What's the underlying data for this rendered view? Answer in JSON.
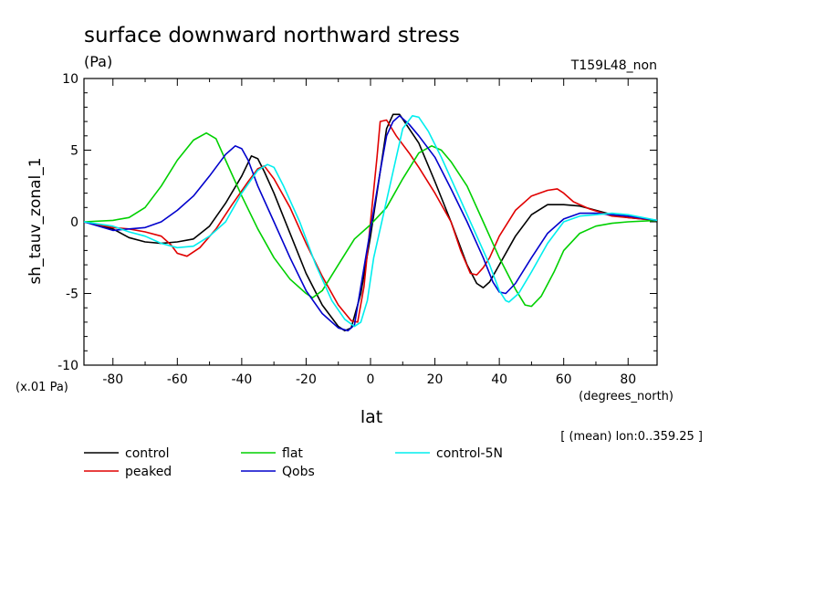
{
  "chart_data": {
    "type": "line",
    "title": "surface downward northward stress",
    "units_label": "(Pa)",
    "run_label": "T159L48_non",
    "ylabel": "sh_tauv_zonal_1",
    "scale_label": "(x.01 Pa)",
    "xlabel": "lat",
    "x_units_label": "(degrees_north)",
    "subset_note": "[ (mean) lon:0..359.25 ]",
    "xlim": [
      -89,
      89
    ],
    "ylim": [
      -10,
      10
    ],
    "x_ticks": [
      "-80",
      "-60",
      "-40",
      "-20",
      "0",
      "20",
      "40",
      "60",
      "80"
    ],
    "y_ticks": [
      "10",
      "5",
      "0",
      "-5",
      "-10"
    ],
    "legend_position": "bottom",
    "series": [
      {
        "name": "control",
        "color": "#000000",
        "points": [
          [
            -89,
            0
          ],
          [
            -80,
            -0.5
          ],
          [
            -75,
            -1.1
          ],
          [
            -70,
            -1.4
          ],
          [
            -65,
            -1.5
          ],
          [
            -60,
            -1.4
          ],
          [
            -55,
            -1.2
          ],
          [
            -50,
            -0.3
          ],
          [
            -45,
            1.3
          ],
          [
            -40,
            3.2
          ],
          [
            -37,
            4.6
          ],
          [
            -35,
            4.4
          ],
          [
            -33,
            3.5
          ],
          [
            -30,
            2.0
          ],
          [
            -25,
            -0.8
          ],
          [
            -20,
            -3.6
          ],
          [
            -15,
            -5.8
          ],
          [
            -10,
            -7.3
          ],
          [
            -8,
            -7.6
          ],
          [
            -6,
            -7.4
          ],
          [
            -3,
            -5.0
          ],
          [
            0,
            -1.0
          ],
          [
            3,
            3.5
          ],
          [
            5,
            6.5
          ],
          [
            7,
            7.5
          ],
          [
            9,
            7.5
          ],
          [
            12,
            6.5
          ],
          [
            15,
            5.5
          ],
          [
            20,
            2.8
          ],
          [
            25,
            0
          ],
          [
            30,
            -3
          ],
          [
            33,
            -4.3
          ],
          [
            35,
            -4.6
          ],
          [
            37,
            -4.2
          ],
          [
            40,
            -3
          ],
          [
            45,
            -1
          ],
          [
            50,
            0.5
          ],
          [
            55,
            1.2
          ],
          [
            60,
            1.2
          ],
          [
            65,
            1.1
          ],
          [
            70,
            0.8
          ],
          [
            75,
            0.5
          ],
          [
            80,
            0.3
          ],
          [
            89,
            0.1
          ]
        ]
      },
      {
        "name": "peaked",
        "color": "#e00000",
        "points": [
          [
            -89,
            0
          ],
          [
            -80,
            -0.4
          ],
          [
            -75,
            -0.5
          ],
          [
            -70,
            -0.7
          ],
          [
            -65,
            -1.0
          ],
          [
            -62,
            -1.6
          ],
          [
            -60,
            -2.2
          ],
          [
            -57,
            -2.4
          ],
          [
            -53,
            -1.8
          ],
          [
            -48,
            -0.5
          ],
          [
            -43,
            1.2
          ],
          [
            -38,
            2.8
          ],
          [
            -35,
            3.7
          ],
          [
            -33,
            3.9
          ],
          [
            -30,
            3.0
          ],
          [
            -25,
            1.0
          ],
          [
            -20,
            -1.5
          ],
          [
            -15,
            -3.8
          ],
          [
            -10,
            -5.8
          ],
          [
            -6,
            -6.9
          ],
          [
            -4,
            -7.0
          ],
          [
            -2,
            -4.5
          ],
          [
            0,
            0
          ],
          [
            2,
            4.5
          ],
          [
            3,
            7.0
          ],
          [
            5,
            7.1
          ],
          [
            8,
            6.0
          ],
          [
            12,
            4.8
          ],
          [
            15,
            3.8
          ],
          [
            20,
            2.0
          ],
          [
            25,
            0
          ],
          [
            28,
            -2.0
          ],
          [
            31,
            -3.6
          ],
          [
            33,
            -3.7
          ],
          [
            35,
            -3.2
          ],
          [
            37,
            -2.5
          ],
          [
            40,
            -1.0
          ],
          [
            45,
            0.8
          ],
          [
            50,
            1.8
          ],
          [
            55,
            2.2
          ],
          [
            58,
            2.3
          ],
          [
            60,
            2.0
          ],
          [
            63,
            1.4
          ],
          [
            68,
            0.9
          ],
          [
            75,
            0.4
          ],
          [
            89,
            0.1
          ]
        ]
      },
      {
        "name": "flat",
        "color": "#00d000",
        "points": [
          [
            -89,
            0
          ],
          [
            -80,
            0.1
          ],
          [
            -75,
            0.3
          ],
          [
            -70,
            1.0
          ],
          [
            -65,
            2.5
          ],
          [
            -60,
            4.3
          ],
          [
            -55,
            5.7
          ],
          [
            -51,
            6.2
          ],
          [
            -48,
            5.8
          ],
          [
            -45,
            4.3
          ],
          [
            -40,
            1.8
          ],
          [
            -35,
            -0.5
          ],
          [
            -30,
            -2.5
          ],
          [
            -25,
            -4.0
          ],
          [
            -20,
            -5.0
          ],
          [
            -18,
            -5.3
          ],
          [
            -15,
            -4.8
          ],
          [
            -10,
            -3.0
          ],
          [
            -5,
            -1.2
          ],
          [
            0,
            -0.2
          ],
          [
            5,
            1.0
          ],
          [
            10,
            3.0
          ],
          [
            15,
            4.8
          ],
          [
            19,
            5.3
          ],
          [
            22,
            5.0
          ],
          [
            25,
            4.2
          ],
          [
            30,
            2.5
          ],
          [
            35,
            0
          ],
          [
            40,
            -2.5
          ],
          [
            45,
            -4.7
          ],
          [
            48,
            -5.8
          ],
          [
            50,
            -5.9
          ],
          [
            53,
            -5.2
          ],
          [
            57,
            -3.5
          ],
          [
            60,
            -2.0
          ],
          [
            65,
            -0.8
          ],
          [
            70,
            -0.3
          ],
          [
            75,
            -0.1
          ],
          [
            80,
            0
          ],
          [
            89,
            0.1
          ]
        ]
      },
      {
        "name": "Qobs",
        "color": "#0000cc",
        "points": [
          [
            -89,
            0
          ],
          [
            -80,
            -0.6
          ],
          [
            -75,
            -0.5
          ],
          [
            -70,
            -0.4
          ],
          [
            -65,
            0
          ],
          [
            -60,
            0.8
          ],
          [
            -55,
            1.8
          ],
          [
            -50,
            3.2
          ],
          [
            -45,
            4.7
          ],
          [
            -42,
            5.3
          ],
          [
            -40,
            5.1
          ],
          [
            -38,
            4.3
          ],
          [
            -35,
            2.5
          ],
          [
            -30,
            0
          ],
          [
            -25,
            -2.5
          ],
          [
            -20,
            -4.8
          ],
          [
            -15,
            -6.4
          ],
          [
            -10,
            -7.4
          ],
          [
            -7,
            -7.6
          ],
          [
            -5,
            -7.2
          ],
          [
            -3,
            -4.5
          ],
          [
            0,
            -0.5
          ],
          [
            3,
            3.5
          ],
          [
            5,
            6.0
          ],
          [
            7,
            7.0
          ],
          [
            9,
            7.4
          ],
          [
            12,
            6.8
          ],
          [
            15,
            6.0
          ],
          [
            20,
            4.5
          ],
          [
            25,
            2.3
          ],
          [
            30,
            0
          ],
          [
            35,
            -2.5
          ],
          [
            38,
            -4.2
          ],
          [
            40,
            -4.9
          ],
          [
            42,
            -5.0
          ],
          [
            45,
            -4.3
          ],
          [
            50,
            -2.5
          ],
          [
            55,
            -0.8
          ],
          [
            60,
            0.2
          ],
          [
            65,
            0.6
          ],
          [
            70,
            0.6
          ],
          [
            75,
            0.5
          ],
          [
            80,
            0.4
          ],
          [
            89,
            0.1
          ]
        ]
      },
      {
        "name": "control-5N",
        "color": "#00eeee",
        "points": [
          [
            -89,
            0
          ],
          [
            -80,
            -0.3
          ],
          [
            -75,
            -0.7
          ],
          [
            -70,
            -1.0
          ],
          [
            -65,
            -1.5
          ],
          [
            -60,
            -1.8
          ],
          [
            -55,
            -1.7
          ],
          [
            -50,
            -1.0
          ],
          [
            -45,
            0
          ],
          [
            -40,
            2.0
          ],
          [
            -35,
            3.6
          ],
          [
            -32,
            4.0
          ],
          [
            -30,
            3.8
          ],
          [
            -27,
            2.5
          ],
          [
            -22,
            0
          ],
          [
            -17,
            -3.0
          ],
          [
            -12,
            -5.5
          ],
          [
            -8,
            -6.8
          ],
          [
            -5,
            -7.3
          ],
          [
            -3,
            -7.0
          ],
          [
            -1,
            -5.5
          ],
          [
            1,
            -2.5
          ],
          [
            4,
            0.5
          ],
          [
            7,
            3.5
          ],
          [
            10,
            6.5
          ],
          [
            13,
            7.4
          ],
          [
            15,
            7.3
          ],
          [
            18,
            6.3
          ],
          [
            22,
            4.5
          ],
          [
            27,
            2.0
          ],
          [
            32,
            -0.5
          ],
          [
            37,
            -3.0
          ],
          [
            40,
            -4.8
          ],
          [
            42,
            -5.5
          ],
          [
            43,
            -5.6
          ],
          [
            46,
            -5.0
          ],
          [
            50,
            -3.5
          ],
          [
            55,
            -1.5
          ],
          [
            60,
            0
          ],
          [
            65,
            0.4
          ],
          [
            70,
            0.5
          ],
          [
            75,
            0.6
          ],
          [
            80,
            0.5
          ],
          [
            89,
            0.1
          ]
        ]
      }
    ]
  }
}
